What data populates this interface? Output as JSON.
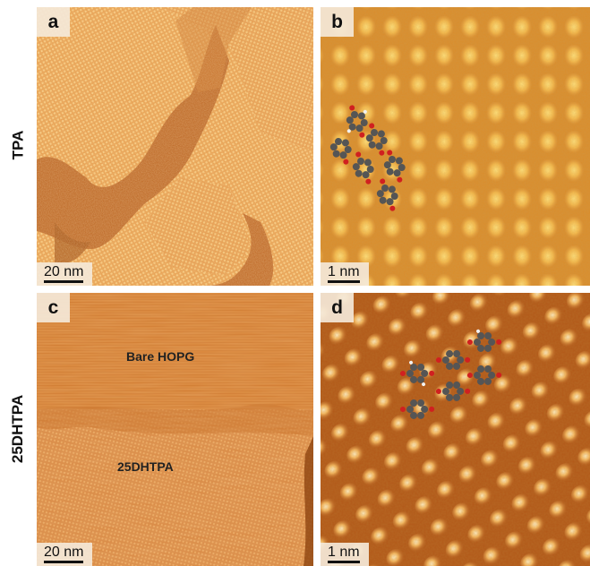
{
  "row_labels": {
    "top": "TPA",
    "bottom": "25DHTPA"
  },
  "panels": {
    "a": {
      "letter": "a",
      "scale_label": "20 nm",
      "description": "TPA on HOPG, large-area STM topography with ordered domains"
    },
    "b": {
      "letter": "b",
      "scale_label": "1 nm",
      "description": "TPA high-resolution lattice with overlaid molecular models"
    },
    "c": {
      "letter": "c",
      "scale_label": "20 nm",
      "annotations": {
        "bare": "Bare HOPG",
        "molecule": "25DHTPA"
      }
    },
    "d": {
      "letter": "d",
      "scale_label": "1 nm",
      "description": "25DHTPA high-resolution lattice with overlaid molecular models"
    }
  },
  "colors": {
    "stm_dark": "#a34f14",
    "stm_mid": "#d98a3a",
    "stm_light": "#f6d27a",
    "label_box": "#f4e8d8",
    "carbon": "#555555",
    "oxygen": "#d02020",
    "hydrogen": "#f2f2f2"
  }
}
